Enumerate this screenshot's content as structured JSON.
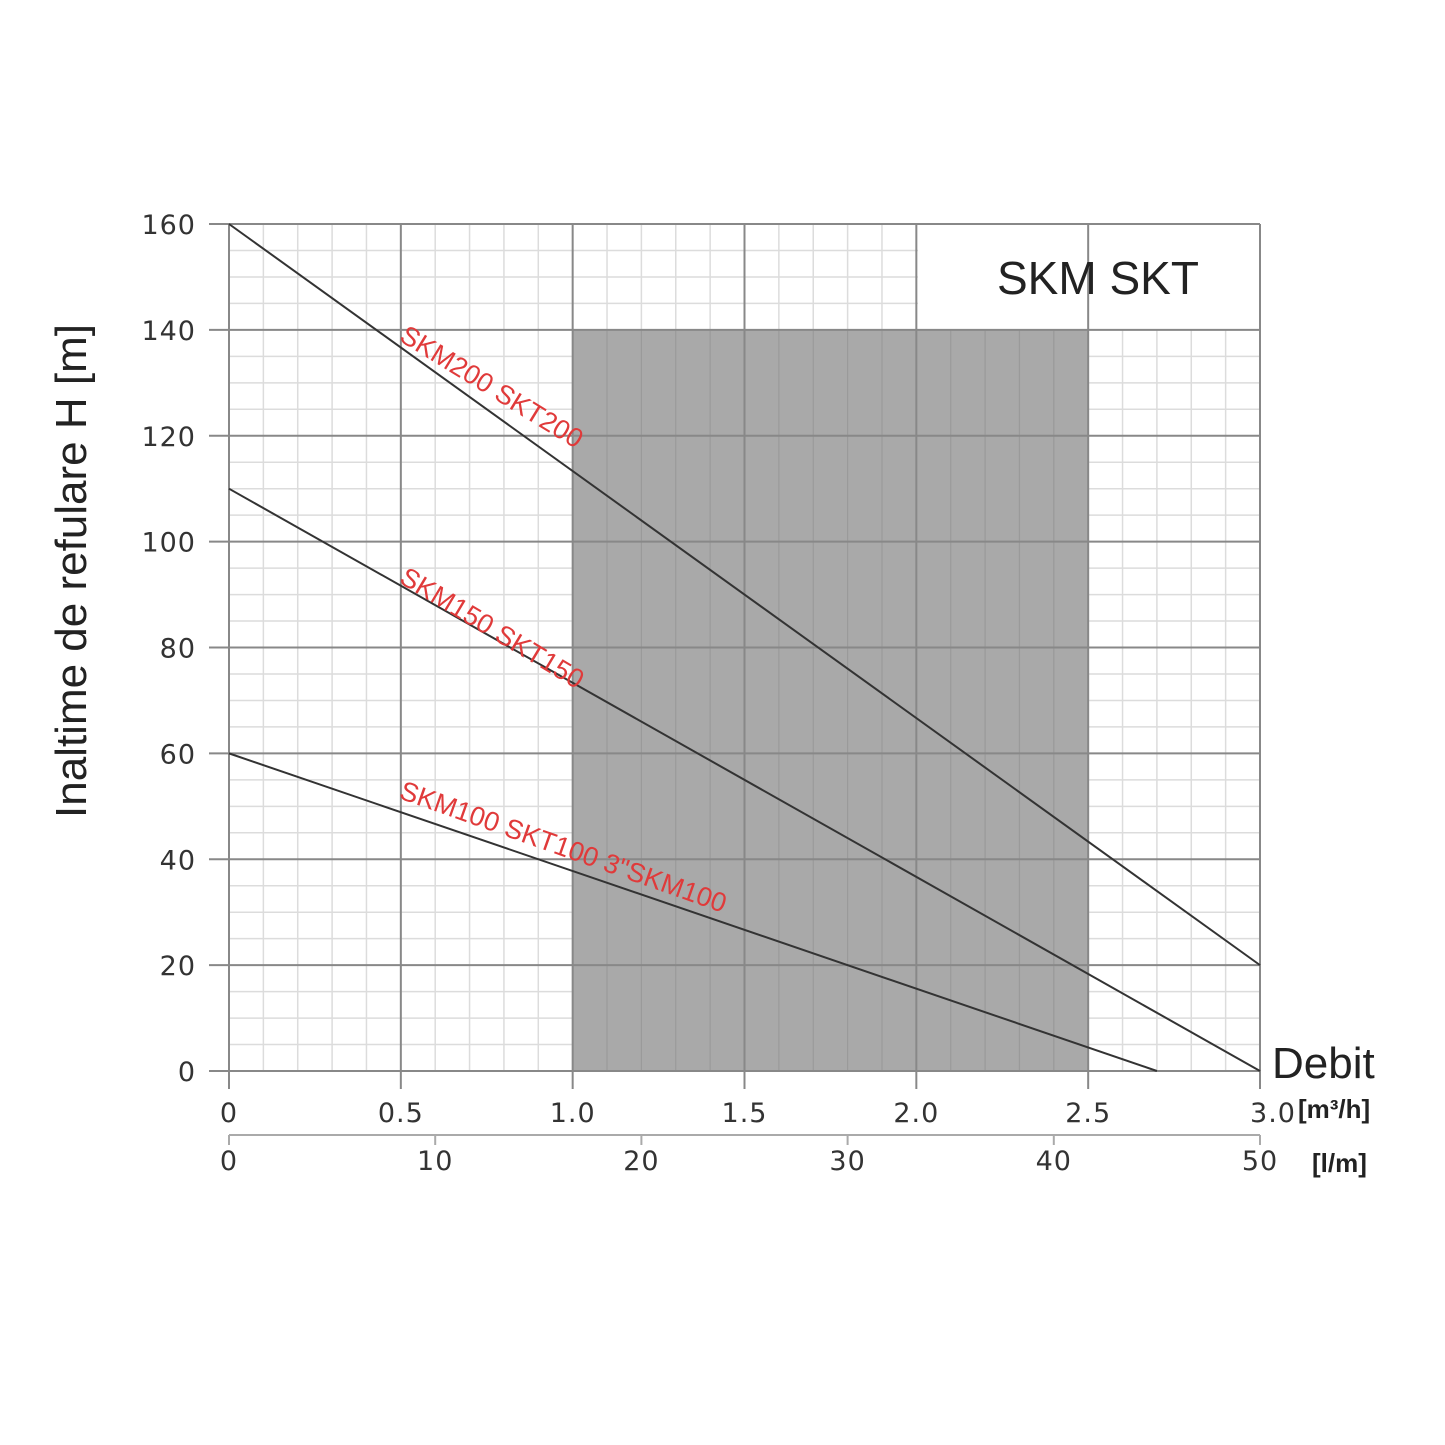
{
  "chart_data": {
    "type": "line",
    "title": "SKM SKT",
    "ylabel": "Inaltime de refulare H [m]",
    "xlabel": "Debit",
    "x_unit": "[m³/h]",
    "x2_unit": "[l/m]",
    "xlim": [
      0,
      3.0
    ],
    "ylim": [
      0,
      160
    ],
    "x2lim": [
      0,
      50
    ],
    "grid": true,
    "xticks": [
      "0",
      "0.5",
      "1.0",
      "1.5",
      "2.0",
      "2.5",
      "3.0"
    ],
    "xtick_values": [
      0,
      0.5,
      1.0,
      1.5,
      2.0,
      2.5,
      3.0
    ],
    "x2ticks": [
      "0",
      "10",
      "20",
      "30",
      "40",
      "50"
    ],
    "x2tick_values": [
      0,
      10,
      20,
      30,
      40,
      50
    ],
    "yticks": [
      "0",
      "20",
      "40",
      "60",
      "80",
      "100",
      "120",
      "140",
      "160"
    ],
    "ytick_values": [
      0,
      20,
      40,
      60,
      80,
      100,
      120,
      140,
      160
    ],
    "shaded_region": {
      "x": [
        1.0,
        2.5
      ],
      "y": [
        0,
        140
      ],
      "color": "#a9a9a9"
    },
    "series": [
      {
        "name": "SKM200 SKT200",
        "x": [
          0,
          3.0
        ],
        "y": [
          160,
          20
        ]
      },
      {
        "name": "SKM150 SKT150",
        "x": [
          0,
          3.0
        ],
        "y": [
          110,
          0
        ]
      },
      {
        "name": "SKM100 SKT100   3\"SKM100",
        "x": [
          0,
          2.7
        ],
        "y": [
          60,
          0
        ]
      }
    ],
    "colors": {
      "line": "#333333",
      "label": "#e03a3a",
      "grid": "#cccccc"
    }
  }
}
